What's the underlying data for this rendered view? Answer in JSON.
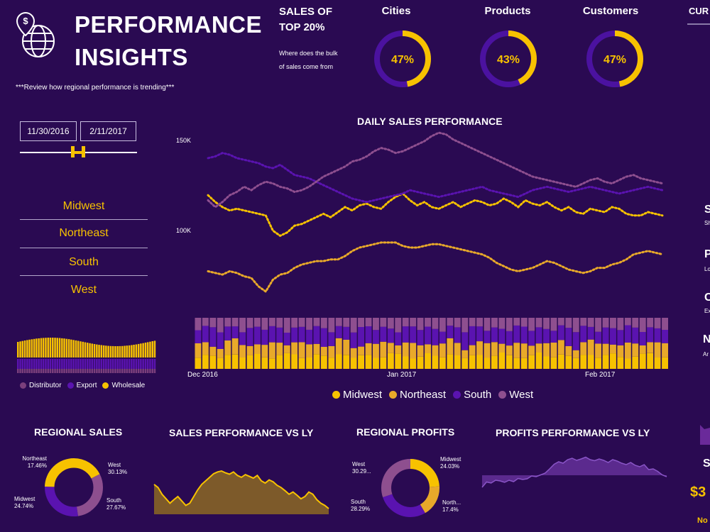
{
  "header": {
    "title_line1": "PERFORMANCE",
    "title_line2": "INSIGHTS",
    "subtitle": "***Review how regional performance is trending***",
    "sales_of_line1": "SALES OF",
    "sales_of_line2": "TOP 20%",
    "where_text": "Where does the bulk of sales come from"
  },
  "kpis": [
    {
      "label": "Cities",
      "value": "47%",
      "pct": 47
    },
    {
      "label": "Products",
      "value": "43%",
      "pct": 43
    },
    {
      "label": "Customers",
      "value": "47%",
      "pct": 47
    }
  ],
  "right_partial": {
    "cur": "CUR",
    "letters": [
      "S",
      "P",
      "C",
      "N"
    ],
    "smalls": [
      "Sh",
      "Lo",
      "Ex",
      "Ar"
    ],
    "bottom_letter": "S",
    "amount": "$3",
    "footer": "No"
  },
  "filters": {
    "date_start": "11/30/2016",
    "date_end": "2/11/2017",
    "slider_start": 0.45,
    "slider_end": 0.55,
    "regions": [
      "Midwest",
      "Northeast",
      "South",
      "West"
    ]
  },
  "colors": {
    "bg": "#2a0a52",
    "midwest": "#f7c200",
    "northeast": "#e8a92a",
    "south": "#5a13b0",
    "west": "#8e4f8f",
    "distributor": "#7b3f7c",
    "export": "#5a13b0",
    "wholesale": "#f7c200",
    "ring_track": "#4b12a0",
    "ring_fill": "#f7c200"
  },
  "channel_legend": [
    "Distributor",
    "Export",
    "Wholesale"
  ],
  "chart_data": [
    {
      "type": "line",
      "title": "DAILY SALES PERFORMANCE",
      "x_ticks": [
        "Dec 2016",
        "Jan 2017",
        "Feb 2017"
      ],
      "y_ticks": [
        "150K",
        "100K"
      ],
      "series": [
        {
          "name": "Midwest",
          "values": [
            125,
            121,
            118,
            116,
            117,
            116,
            115,
            114,
            113,
            104,
            101,
            103,
            107,
            108,
            110,
            112,
            114,
            112,
            115,
            118,
            116,
            119,
            120,
            118,
            117,
            121,
            124,
            126,
            122,
            119,
            121,
            118,
            117,
            119,
            121,
            118,
            120,
            122,
            121,
            119,
            120,
            123,
            121,
            118,
            122,
            120,
            119,
            121,
            118,
            116,
            118,
            115,
            114,
            117,
            116,
            115,
            118,
            117,
            114,
            113,
            113,
            115,
            114,
            113
          ]
        },
        {
          "name": "Northeast",
          "values": [
            80,
            79,
            78,
            80,
            79,
            77,
            76,
            71,
            68,
            75,
            78,
            79,
            82,
            84,
            85,
            86,
            86,
            87,
            87,
            89,
            92,
            94,
            95,
            96,
            97,
            97,
            97,
            95,
            94,
            94,
            95,
            96,
            96,
            95,
            94,
            93,
            92,
            91,
            90,
            88,
            85,
            83,
            81,
            80,
            81,
            82,
            84,
            86,
            85,
            83,
            81,
            80,
            79,
            80,
            82,
            82,
            84,
            85,
            87,
            90,
            91,
            92,
            91,
            90
          ]
        },
        {
          "name": "South",
          "values": [
            147,
            148,
            150,
            149,
            147,
            146,
            145,
            144,
            142,
            141,
            143,
            140,
            137,
            136,
            135,
            133,
            131,
            129,
            127,
            125,
            123,
            122,
            121,
            122,
            123,
            124,
            125,
            126,
            128,
            127,
            126,
            125,
            124,
            125,
            126,
            127,
            128,
            129,
            130,
            128,
            127,
            126,
            125,
            124,
            126,
            128,
            129,
            130,
            129,
            128,
            127,
            128,
            129,
            130,
            129,
            128,
            127,
            126,
            127,
            128,
            129,
            130,
            129,
            128
          ]
        },
        {
          "name": "West",
          "values": [
            122,
            118,
            121,
            125,
            127,
            130,
            128,
            131,
            133,
            132,
            130,
            129,
            127,
            128,
            130,
            133,
            136,
            138,
            140,
            142,
            145,
            146,
            148,
            151,
            153,
            152,
            150,
            151,
            153,
            155,
            157,
            160,
            162,
            161,
            158,
            156,
            154,
            152,
            150,
            148,
            146,
            144,
            142,
            140,
            138,
            136,
            135,
            134,
            133,
            132,
            131,
            130,
            132,
            134,
            135,
            133,
            132,
            134,
            136,
            137,
            135,
            134,
            133,
            132
          ]
        }
      ]
    },
    {
      "type": "bar",
      "title": "",
      "stacked": true,
      "series_names": [
        "Midwest",
        "Northeast",
        "South",
        "West"
      ],
      "bars": 64
    },
    {
      "type": "pie",
      "title": "REGIONAL SALES",
      "slices": [
        {
          "name": "Northeast",
          "label": "17.46%",
          "value": 17.46
        },
        {
          "name": "West",
          "label": "30.13%",
          "value": 30.13
        },
        {
          "name": "South",
          "label": "27.67%",
          "value": 27.67
        },
        {
          "name": "Midwest",
          "label": "24.74%",
          "value": 24.74
        }
      ]
    },
    {
      "type": "area",
      "title": "SALES PERFORMANCE VS LY",
      "values": [
        0.62,
        0.55,
        0.4,
        0.3,
        0.2,
        0.28,
        0.35,
        0.25,
        0.15,
        0.2,
        0.35,
        0.5,
        0.62,
        0.7,
        0.78,
        0.86,
        0.9,
        0.92,
        0.88,
        0.85,
        0.9,
        0.82,
        0.78,
        0.84,
        0.8,
        0.76,
        0.82,
        0.7,
        0.65,
        0.72,
        0.68,
        0.6,
        0.55,
        0.48,
        0.4,
        0.45,
        0.38,
        0.3,
        0.35,
        0.45,
        0.4,
        0.28,
        0.2,
        0.15,
        0.08
      ]
    },
    {
      "type": "pie",
      "title": "REGIONAL PROFITS",
      "slices": [
        {
          "name": "Midwest",
          "label": "24.03%",
          "value": 24.03
        },
        {
          "name": "North...",
          "label": "17.4%",
          "value": 17.4
        },
        {
          "name": "South",
          "label": "28.29%",
          "value": 28.29
        },
        {
          "name": "West",
          "label": "30.29...",
          "value": 30.29
        }
      ]
    },
    {
      "type": "area",
      "title": "PROFITS PERFORMANCE VS LY",
      "values": [
        0.1,
        0.25,
        0.22,
        0.3,
        0.28,
        0.24,
        0.3,
        0.26,
        0.35,
        0.32,
        0.34,
        0.42,
        0.4,
        0.45,
        0.5,
        0.62,
        0.75,
        0.82,
        0.78,
        0.88,
        0.92,
        0.86,
        0.9,
        0.95,
        0.88,
        0.85,
        0.9,
        0.86,
        0.8,
        0.88,
        0.84,
        0.78,
        0.74,
        0.8,
        0.72,
        0.68,
        0.74,
        0.6,
        0.62,
        0.55,
        0.45,
        0.4
      ]
    }
  ]
}
